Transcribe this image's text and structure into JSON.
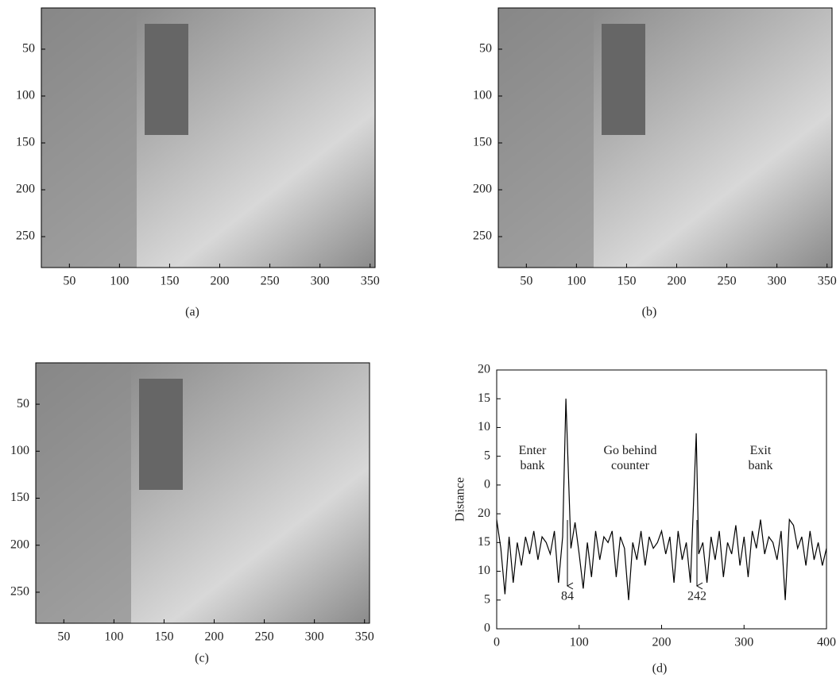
{
  "chart_data": [
    {
      "type": "image",
      "caption": "(a)",
      "xlim": [
        22,
        355
      ],
      "ylim": [
        6,
        283
      ],
      "y_reversed": true,
      "xticks": [
        50,
        100,
        150,
        200,
        250,
        300,
        350
      ],
      "yticks": [
        50,
        100,
        150,
        200,
        250
      ]
    },
    {
      "type": "image",
      "caption": "(b)",
      "xlim": [
        22,
        355
      ],
      "ylim": [
        6,
        283
      ],
      "y_reversed": true,
      "xticks": [
        50,
        100,
        150,
        200,
        250,
        300,
        350
      ],
      "yticks": [
        50,
        100,
        150,
        200,
        250
      ]
    },
    {
      "type": "image",
      "caption": "(c)",
      "xlim": [
        22,
        355
      ],
      "ylim": [
        6,
        283
      ],
      "y_reversed": true,
      "xticks": [
        50,
        100,
        150,
        200,
        250,
        300,
        350
      ],
      "yticks": [
        50,
        100,
        150,
        200,
        250
      ]
    },
    {
      "type": "line",
      "caption": "(d)",
      "ylabel": "Distance",
      "color": "#000000",
      "xlim": [
        0,
        400
      ],
      "ylim": [
        0,
        45
      ],
      "xticks": [
        0,
        100,
        200,
        300,
        400
      ],
      "yticks": [
        0,
        5,
        10,
        15,
        20,
        {
          "value": 25,
          "label": "0"
        },
        {
          "value": 30,
          "label": "5"
        },
        {
          "value": 35,
          "label": "10"
        },
        {
          "value": 40,
          "label": "15"
        },
        {
          "value": 45,
          "label": "20"
        }
      ],
      "x": [
        0,
        5,
        10,
        15,
        20,
        25,
        30,
        35,
        40,
        45,
        50,
        55,
        60,
        65,
        70,
        75,
        80,
        84,
        90,
        95,
        100,
        105,
        110,
        115,
        120,
        125,
        130,
        135,
        140,
        145,
        150,
        155,
        160,
        165,
        170,
        175,
        180,
        185,
        190,
        195,
        200,
        205,
        210,
        215,
        220,
        225,
        230,
        235,
        242,
        245,
        250,
        255,
        260,
        265,
        270,
        275,
        280,
        285,
        290,
        295,
        300,
        305,
        310,
        315,
        320,
        325,
        330,
        335,
        340,
        345,
        350,
        355,
        360,
        365,
        370,
        375,
        380,
        385,
        390,
        395,
        400
      ],
      "values": [
        19,
        14,
        6,
        16,
        8,
        15,
        11,
        16,
        13,
        17,
        12,
        16,
        15,
        13,
        17,
        8,
        16,
        40,
        14,
        18.5,
        13,
        7,
        15,
        9,
        17,
        12,
        16,
        15,
        17,
        9,
        16,
        14,
        5,
        15,
        12,
        17,
        11,
        16,
        14,
        15,
        17,
        13,
        16,
        8,
        17,
        12,
        15,
        8,
        34,
        13,
        15,
        8,
        16,
        12,
        17,
        9,
        15,
        13,
        18,
        11,
        16,
        9,
        17,
        14,
        19,
        13,
        16,
        15,
        12,
        17,
        5,
        19,
        18,
        14,
        16,
        11,
        17,
        12,
        15,
        11,
        14
      ],
      "annotations": [
        {
          "lines": [
            "Enter",
            "bank"
          ]
        },
        {
          "lines": [
            "Go behind",
            "counter"
          ]
        },
        {
          "lines": [
            "Exit",
            "bank"
          ]
        },
        {
          "lines": [
            "84"
          ]
        },
        {
          "lines": [
            "242"
          ]
        }
      ]
    }
  ]
}
